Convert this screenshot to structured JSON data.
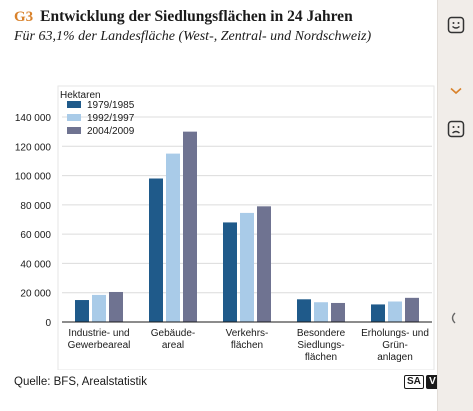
{
  "header": {
    "label": "G3",
    "title": "Entwicklung der Siedlungsflächen in 24 Jahren",
    "subtitle": "Für 63,1% der Landesfläche (West-, Zentral- und Nordschweiz)"
  },
  "footer": {
    "source": "Quelle: BFS, Arealstatistik",
    "badge_sa": "SA",
    "badge_v": "V"
  },
  "sidebar": {
    "positive_icon": "smiley-icon",
    "chevron_icon": "chevron-down-icon",
    "negative_icon": "frown-icon"
  },
  "chart_data": {
    "type": "bar",
    "ylabel": "Hektaren",
    "ylim": [
      0,
      140000
    ],
    "yticks": [
      0,
      20000,
      40000,
      60000,
      80000,
      100000,
      120000,
      140000
    ],
    "ytick_labels": [
      "0",
      "20 000",
      "40 000",
      "60 000",
      "80 000",
      "100 000",
      "120 000",
      "140 000"
    ],
    "grid": true,
    "legend_position": "top-left",
    "categories": [
      [
        "Industrie- und",
        "Gewerbeareal"
      ],
      [
        "Gebäude-",
        "areal"
      ],
      [
        "Verkehrs-",
        "flächen"
      ],
      [
        "Besondere",
        "Siedlungs-",
        "flächen"
      ],
      [
        "Erholungs- und",
        "Grün-",
        "anlagen"
      ]
    ],
    "series": [
      {
        "name": "1979/1985",
        "color": "#1f5a8a",
        "values": [
          15000,
          98000,
          68000,
          15500,
          12000
        ]
      },
      {
        "name": "1992/1997",
        "color": "#a9cbe8",
        "values": [
          18500,
          115000,
          74500,
          13500,
          14000
        ]
      },
      {
        "name": "2004/2009",
        "color": "#6f7391",
        "values": [
          20500,
          130000,
          79000,
          13000,
          16500
        ]
      }
    ]
  }
}
